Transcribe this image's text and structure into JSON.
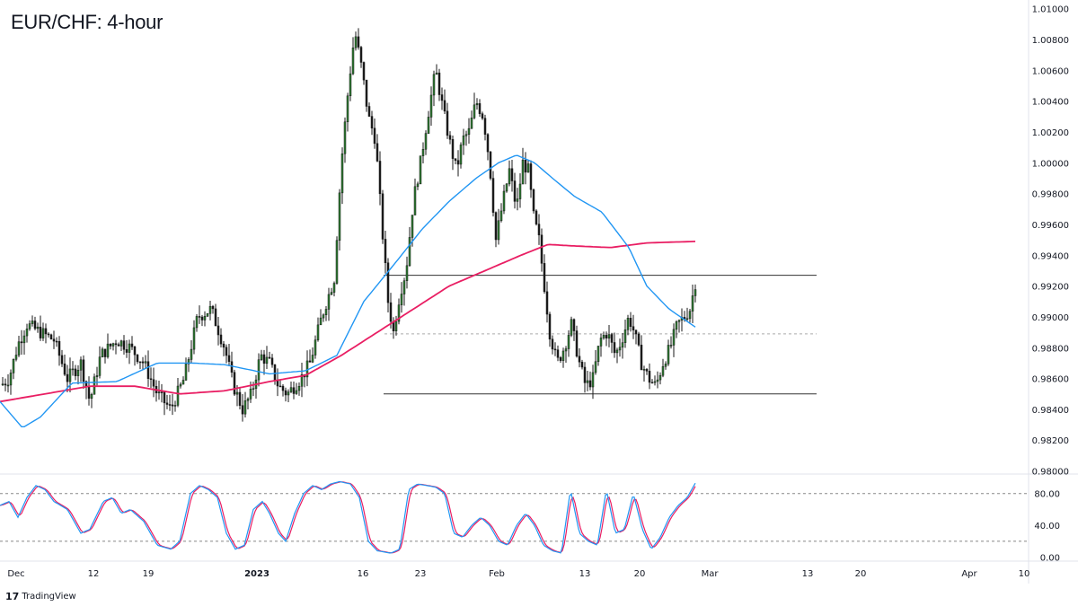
{
  "header": {
    "title": "EUR/CHF: 4-hour"
  },
  "footer": {
    "brand": "TradingView",
    "brand_icon": "tradingview-logo-icon"
  },
  "colors": {
    "candle": "#1a1a1a",
    "candle_up_fill": "#2e7d32",
    "ma_fast": "#2196f3",
    "ma_slow": "#e91e63",
    "stoch_k": "#2196f3",
    "stoch_d": "#e91e63",
    "level": "#333333",
    "grid_dash": "#888888"
  },
  "chart_data": [
    {
      "type": "candlestick",
      "symbol": "EUR/CHF",
      "timeframe": "4-hour",
      "y_ticks": [
        "0.98000",
        "0.98200",
        "0.98400",
        "0.98600",
        "0.98800",
        "0.99000",
        "0.99200",
        "0.99400",
        "0.99600",
        "0.99800",
        "1.00000",
        "1.00200",
        "1.00400",
        "1.00600",
        "1.00800",
        "1.01000"
      ],
      "ylim": [
        0.9798,
        1.0101
      ],
      "x_ticks": [
        {
          "label": "Dec",
          "bold": false
        },
        {
          "label": "12",
          "bold": false
        },
        {
          "label": "19",
          "bold": false
        },
        {
          "label": "2023",
          "bold": true
        },
        {
          "label": "16",
          "bold": false
        },
        {
          "label": "23",
          "bold": false
        },
        {
          "label": "Feb",
          "bold": false
        },
        {
          "label": "13",
          "bold": false
        },
        {
          "label": "20",
          "bold": false
        },
        {
          "label": "Mar",
          "bold": false
        },
        {
          "label": "13",
          "bold": false
        },
        {
          "label": "20",
          "bold": false
        },
        {
          "label": "Apr",
          "bold": false
        },
        {
          "label": "10",
          "bold": false
        }
      ],
      "price_path": [
        [
          0,
          0.9855
        ],
        [
          10,
          0.986
        ],
        [
          20,
          0.9882
        ],
        [
          30,
          0.9895
        ],
        [
          45,
          0.989
        ],
        [
          60,
          0.9885
        ],
        [
          75,
          0.986
        ],
        [
          90,
          0.987
        ],
        [
          100,
          0.9845
        ],
        [
          112,
          0.9875
        ],
        [
          130,
          0.9885
        ],
        [
          145,
          0.988
        ],
        [
          160,
          0.987
        ],
        [
          175,
          0.985
        ],
        [
          190,
          0.984
        ],
        [
          205,
          0.986
        ],
        [
          220,
          0.99
        ],
        [
          235,
          0.9905
        ],
        [
          250,
          0.988
        ],
        [
          260,
          0.9855
        ],
        [
          270,
          0.984
        ],
        [
          280,
          0.985
        ],
        [
          290,
          0.9875
        ],
        [
          300,
          0.987
        ],
        [
          310,
          0.9855
        ],
        [
          320,
          0.985
        ],
        [
          335,
          0.986
        ],
        [
          345,
          0.987
        ],
        [
          358,
          0.99
        ],
        [
          372,
          0.9925
        ],
        [
          380,
          1.0
        ],
        [
          388,
          1.005
        ],
        [
          395,
          1.0085
        ],
        [
          403,
          1.006
        ],
        [
          410,
          1.003
        ],
        [
          418,
          1.0015
        ],
        [
          425,
          0.996
        ],
        [
          432,
          0.991
        ],
        [
          438,
          0.989
        ],
        [
          445,
          0.9915
        ],
        [
          452,
          0.993
        ],
        [
          460,
          0.9975
        ],
        [
          468,
          1.0
        ],
        [
          476,
          1.003
        ],
        [
          485,
          1.006
        ],
        [
          493,
          1.0035
        ],
        [
          500,
          1.0015
        ],
        [
          508,
          0.9995
        ],
        [
          515,
          1.0015
        ],
        [
          522,
          1.002
        ],
        [
          530,
          1.004
        ],
        [
          538,
          1.003
        ],
        [
          545,
          1.0
        ],
        [
          552,
          0.995
        ],
        [
          560,
          0.9975
        ],
        [
          567,
          0.9995
        ],
        [
          575,
          0.997
        ],
        [
          582,
          1.0
        ],
        [
          588,
          0.9995
        ],
        [
          594,
          0.9965
        ],
        [
          600,
          0.995
        ],
        [
          606,
          0.992
        ],
        [
          612,
          0.989
        ],
        [
          620,
          0.987
        ],
        [
          628,
          0.988
        ],
        [
          636,
          0.9895
        ],
        [
          645,
          0.987
        ],
        [
          652,
          0.9855
        ],
        [
          660,
          0.986
        ],
        [
          668,
          0.9885
        ],
        [
          676,
          0.989
        ],
        [
          685,
          0.9875
        ],
        [
          692,
          0.9885
        ],
        [
          700,
          0.99
        ],
        [
          706,
          0.989
        ],
        [
          714,
          0.987
        ],
        [
          722,
          0.986
        ],
        [
          730,
          0.9855
        ],
        [
          738,
          0.987
        ],
        [
          746,
          0.988
        ],
        [
          754,
          0.9895
        ],
        [
          762,
          0.99
        ],
        [
          768,
          0.9905
        ],
        [
          775,
          0.9925
        ]
      ],
      "ma_fast": [
        [
          0,
          0.9845
        ],
        [
          25,
          0.9828
        ],
        [
          45,
          0.9835
        ],
        [
          80,
          0.9857
        ],
        [
          130,
          0.9858
        ],
        [
          175,
          0.987
        ],
        [
          215,
          0.987
        ],
        [
          250,
          0.9869
        ],
        [
          300,
          0.9863
        ],
        [
          340,
          0.9865
        ],
        [
          375,
          0.9875
        ],
        [
          405,
          0.991
        ],
        [
          440,
          0.9935
        ],
        [
          470,
          0.9957
        ],
        [
          500,
          0.9975
        ],
        [
          530,
          0.999
        ],
        [
          555,
          1.0
        ],
        [
          575,
          1.0005
        ],
        [
          595,
          1.0
        ],
        [
          615,
          0.999
        ],
        [
          640,
          0.9978
        ],
        [
          670,
          0.9968
        ],
        [
          700,
          0.9945
        ],
        [
          720,
          0.992
        ],
        [
          745,
          0.9905
        ],
        [
          775,
          0.9893
        ]
      ],
      "ma_slow": [
        [
          0,
          0.9845
        ],
        [
          50,
          0.985
        ],
        [
          100,
          0.9855
        ],
        [
          150,
          0.9855
        ],
        [
          200,
          0.985
        ],
        [
          250,
          0.9852
        ],
        [
          300,
          0.9858
        ],
        [
          340,
          0.9862
        ],
        [
          380,
          0.9875
        ],
        [
          420,
          0.989
        ],
        [
          460,
          0.9905
        ],
        [
          500,
          0.992
        ],
        [
          540,
          0.993
        ],
        [
          580,
          0.994
        ],
        [
          610,
          0.9947
        ],
        [
          640,
          0.9946
        ],
        [
          680,
          0.9945
        ],
        [
          720,
          0.9948
        ],
        [
          775,
          0.9949
        ]
      ],
      "levels": [
        {
          "value": 0.9927,
          "style": "solid"
        },
        {
          "value": 0.9889,
          "style": "dashed"
        },
        {
          "value": 0.985,
          "style": "solid"
        }
      ]
    },
    {
      "type": "line",
      "indicator": "stochastic",
      "y_ticks": [
        "80.00",
        "40.00",
        "0.00"
      ],
      "ylim": [
        -5,
        100
      ],
      "levels": [
        80,
        20
      ],
      "k_path": [
        [
          0,
          65
        ],
        [
          10,
          70
        ],
        [
          20,
          50
        ],
        [
          30,
          75
        ],
        [
          40,
          90
        ],
        [
          50,
          85
        ],
        [
          60,
          70
        ],
        [
          75,
          60
        ],
        [
          90,
          30
        ],
        [
          100,
          35
        ],
        [
          115,
          70
        ],
        [
          125,
          75
        ],
        [
          135,
          55
        ],
        [
          145,
          60
        ],
        [
          160,
          45
        ],
        [
          175,
          15
        ],
        [
          190,
          10
        ],
        [
          200,
          20
        ],
        [
          212,
          80
        ],
        [
          222,
          90
        ],
        [
          232,
          85
        ],
        [
          242,
          75
        ],
        [
          252,
          30
        ],
        [
          262,
          10
        ],
        [
          272,
          15
        ],
        [
          282,
          60
        ],
        [
          292,
          70
        ],
        [
          300,
          55
        ],
        [
          310,
          30
        ],
        [
          318,
          20
        ],
        [
          328,
          55
        ],
        [
          338,
          80
        ],
        [
          348,
          90
        ],
        [
          358,
          85
        ],
        [
          368,
          92
        ],
        [
          378,
          95
        ],
        [
          390,
          92
        ],
        [
          400,
          75
        ],
        [
          410,
          20
        ],
        [
          420,
          8
        ],
        [
          435,
          5
        ],
        [
          445,
          10
        ],
        [
          455,
          85
        ],
        [
          465,
          92
        ],
        [
          475,
          90
        ],
        [
          485,
          88
        ],
        [
          495,
          80
        ],
        [
          505,
          30
        ],
        [
          515,
          25
        ],
        [
          525,
          40
        ],
        [
          535,
          50
        ],
        [
          545,
          40
        ],
        [
          555,
          20
        ],
        [
          565,
          15
        ],
        [
          575,
          40
        ],
        [
          585,
          55
        ],
        [
          595,
          40
        ],
        [
          605,
          15
        ],
        [
          615,
          8
        ],
        [
          625,
          5
        ],
        [
          635,
          85
        ],
        [
          645,
          30
        ],
        [
          655,
          20
        ],
        [
          665,
          15
        ],
        [
          675,
          85
        ],
        [
          685,
          30
        ],
        [
          695,
          35
        ],
        [
          705,
          80
        ],
        [
          715,
          35
        ],
        [
          725,
          10
        ],
        [
          735,
          25
        ],
        [
          745,
          50
        ],
        [
          755,
          65
        ],
        [
          765,
          75
        ],
        [
          775,
          95
        ]
      ]
    }
  ]
}
